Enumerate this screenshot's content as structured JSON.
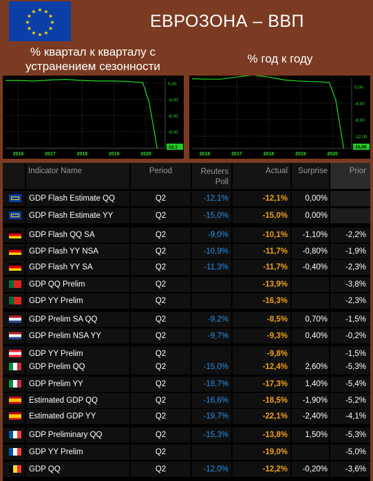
{
  "header": {
    "title": "ЕВРОЗОНА – ВВП",
    "left_caption": "% квартал к кварталу с устранением сезонности",
    "right_caption": "% год к году",
    "flag_icon": "eu-flag-icon"
  },
  "chart_data": [
    {
      "type": "line",
      "x_ticks": [
        "2016",
        "2017",
        "2018",
        "2019",
        "2020"
      ],
      "y_ticks": [
        "0,00",
        "-3,00",
        "-6,00",
        "-9,00",
        "-12,0"
      ],
      "last_value_label": "-12,1",
      "ylim": [
        -12.1,
        0.9
      ],
      "grid": true,
      "color": "#22dd22",
      "x": [
        2015.6,
        2016.0,
        2016.5,
        2017.0,
        2017.5,
        2018.0,
        2018.5,
        2019.0,
        2019.5,
        2019.9,
        2020.1,
        2020.35
      ],
      "values": [
        0.5,
        0.5,
        0.4,
        0.6,
        0.7,
        0.5,
        0.4,
        0.4,
        0.3,
        0.1,
        -3.6,
        -12.1
      ]
    },
    {
      "type": "line",
      "x_ticks": [
        "2016",
        "2017",
        "2018",
        "2019",
        "2020"
      ],
      "y_ticks": [
        "0,00",
        "-4,00",
        "-8,00",
        "-12,00"
      ],
      "last_value_label": "-15,00",
      "ylim": [
        -15.0,
        2.0
      ],
      "grid": true,
      "color": "#22dd22",
      "x": [
        2015.6,
        2016.0,
        2016.5,
        2017.0,
        2017.5,
        2018.0,
        2018.5,
        2019.0,
        2019.5,
        2019.9,
        2020.1,
        2020.35
      ],
      "values": [
        1.9,
        1.8,
        1.8,
        2.3,
        2.8,
        2.3,
        1.6,
        1.3,
        1.2,
        1.0,
        -3.2,
        -15.0
      ]
    }
  ],
  "table": {
    "columns": [
      "Indicator Name",
      "Period",
      "Reuters Poll",
      "Actual",
      "Surprise",
      "Prior"
    ],
    "colors": {
      "poll": "#2b8fe8",
      "actual": "#f0a020",
      "text": "#ffffff"
    },
    "rows": [
      {
        "flag": "eu-flag-icon",
        "name": "GDP Flash Estimate QQ",
        "period": "Q2",
        "poll": "-12,1%",
        "actual": "-12,1%",
        "surprise": "0,00%",
        "prior": ""
      },
      {
        "flag": "eu-flag-icon",
        "name": "GDP Flash Estimate YY",
        "period": "Q2",
        "poll": "-15,0%",
        "actual": "-15,0%",
        "surprise": "0,00%",
        "prior": ""
      },
      {
        "flag": "germany-flag-icon",
        "name": "GDP Flash QQ SA",
        "period": "Q2",
        "poll": "-9,0%",
        "actual": "-10,1%",
        "surprise": "-1,10%",
        "prior": "-2,2%"
      },
      {
        "flag": "germany-flag-icon",
        "name": "GDP Flash YY NSA",
        "period": "Q2",
        "poll": "-10,9%",
        "actual": "-11,7%",
        "surprise": "-0,80%",
        "prior": "-1,9%"
      },
      {
        "flag": "germany-flag-icon",
        "name": "GDP Flash YY SA",
        "period": "Q2",
        "poll": "-11,3%",
        "actual": "-11,7%",
        "surprise": "-0,40%",
        "prior": "-2,3%"
      },
      {
        "flag": "portugal-flag-icon",
        "name": "GDP QQ Prelim",
        "period": "Q2",
        "poll": "",
        "actual": "-13,9%",
        "surprise": "",
        "prior": "-3,8%"
      },
      {
        "flag": "portugal-flag-icon",
        "name": "GDP YY Prelim",
        "period": "Q2",
        "poll": "",
        "actual": "-16,3%",
        "surprise": "",
        "prior": "-2,3%"
      },
      {
        "flag": "netherlands-flag-icon",
        "name": "GDP Prelim SA QQ",
        "period": "Q2",
        "poll": "-9,2%",
        "actual": "-8,5%",
        "surprise": "0,70%",
        "prior": "-1,5%"
      },
      {
        "flag": "netherlands-flag-icon",
        "name": "GDP Prelim NSA YY",
        "period": "Q2",
        "poll": "-9,7%",
        "actual": "-9,3%",
        "surprise": "0,40%",
        "prior": "-0,2%"
      },
      {
        "flag": "austria-flag-icon",
        "name": "GDP YY Prelim",
        "period": "Q2",
        "poll": "",
        "actual": "-9,8%",
        "surprise": "",
        "prior": "-1,5%"
      },
      {
        "flag": "italy-flag-icon",
        "name": "GDP Prelim QQ",
        "period": "Q2",
        "poll": "-15,0%",
        "actual": "-12,4%",
        "surprise": "2,60%",
        "prior": "-5,3%"
      },
      {
        "flag": "italy-flag-icon",
        "name": "GDP Prelim YY",
        "period": "Q2",
        "poll": "-18,7%",
        "actual": "-17,3%",
        "surprise": "1,40%",
        "prior": "-5,4%"
      },
      {
        "flag": "spain-flag-icon",
        "name": "Estimated GDP QQ",
        "period": "Q2",
        "poll": "-16,6%",
        "actual": "-18,5%",
        "surprise": "-1,90%",
        "prior": "-5,2%"
      },
      {
        "flag": "spain-flag-icon",
        "name": "Estimated GDP YY",
        "period": "Q2",
        "poll": "-19,7%",
        "actual": "-22,1%",
        "surprise": "-2,40%",
        "prior": "-4,1%"
      },
      {
        "flag": "france-flag-icon",
        "name": "GDP Preliminary QQ",
        "period": "Q2",
        "poll": "-15,3%",
        "actual": "-13,8%",
        "surprise": "1,50%",
        "prior": "-5,3%"
      },
      {
        "flag": "france-flag-icon",
        "name": "GDP YY Prelim",
        "period": "Q2",
        "poll": "",
        "actual": "-19,0%",
        "surprise": "",
        "prior": "-5,0%"
      },
      {
        "flag": "belgium-flag-icon",
        "name": "GDP QQ",
        "period": "Q2",
        "poll": "-12,0%",
        "actual": "-12,2%",
        "surprise": "-0,20%",
        "prior": "-3,6%"
      }
    ]
  }
}
